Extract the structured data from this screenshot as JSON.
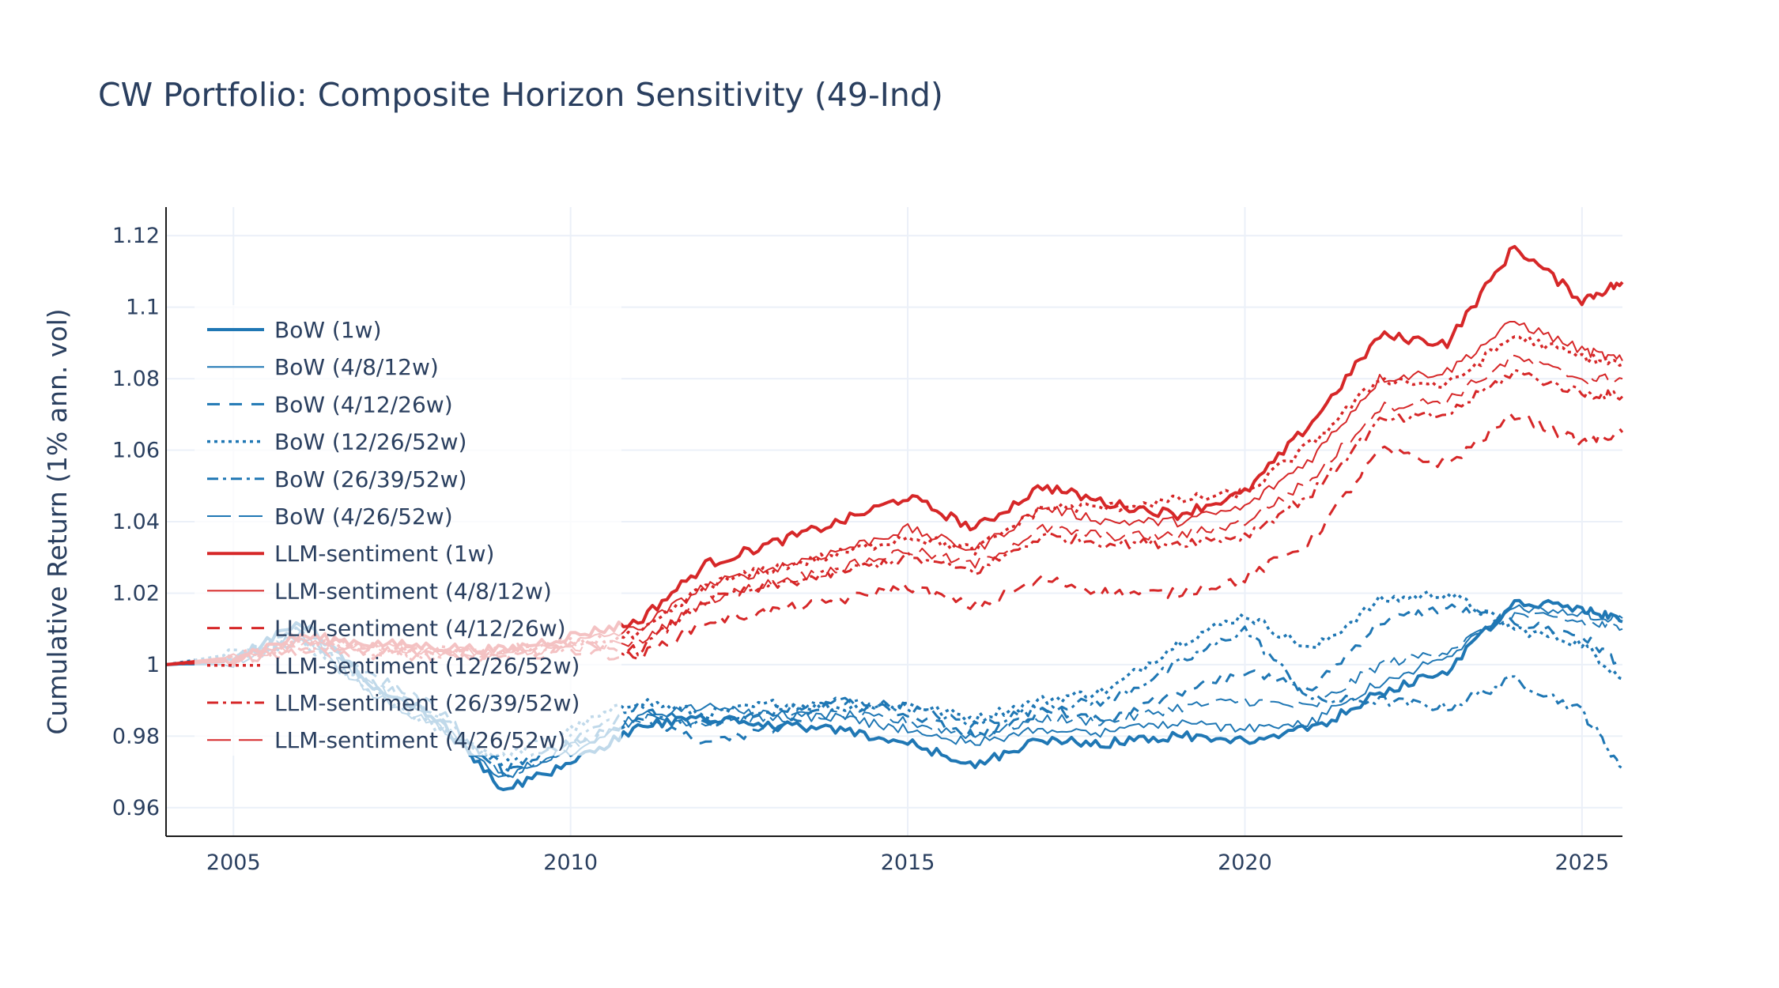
{
  "chart_data": {
    "type": "line",
    "title": "CW Portfolio: Composite Horizon Sensitivity (49-Ind)",
    "xlabel": "",
    "ylabel": "Cumulative Return (1% ann. vol)",
    "xlim": [
      2004,
      2025.6
    ],
    "ylim": [
      0.952,
      1.128
    ],
    "x_ticks": [
      {
        "value": 2005,
        "label": "2005"
      },
      {
        "value": 2010,
        "label": "2010"
      },
      {
        "value": 2015,
        "label": "2015"
      },
      {
        "value": 2020,
        "label": "2020"
      },
      {
        "value": 2025,
        "label": "2025"
      }
    ],
    "y_ticks": [
      {
        "value": 0.96,
        "label": "0.96"
      },
      {
        "value": 0.98,
        "label": "0.98"
      },
      {
        "value": 1.0,
        "label": "1"
      },
      {
        "value": 1.02,
        "label": "1.02"
      },
      {
        "value": 1.04,
        "label": "1.04"
      },
      {
        "value": 1.06,
        "label": "1.06"
      },
      {
        "value": 1.08,
        "label": "1.08"
      },
      {
        "value": 1.1,
        "label": "1.1"
      },
      {
        "value": 1.12,
        "label": "1.12"
      }
    ],
    "grid": true,
    "legend_position": "top-left",
    "colors": {
      "bow": "#1f77b4",
      "llm": "#d62728",
      "grid": "#ebf0f8",
      "axis": "#2a3f5f"
    },
    "x": [
      2004,
      2005,
      2006,
      2007,
      2008,
      2009,
      2010,
      2011,
      2012,
      2013,
      2014,
      2015,
      2016,
      2017,
      2018,
      2019,
      2020,
      2021,
      2022,
      2023,
      2024,
      2025,
      2025.6
    ],
    "series": [
      {
        "name": "BoW (1w)",
        "group": "bow",
        "dash": "solid",
        "width": 4,
        "values": [
          1.0,
          1.001,
          1.012,
          0.995,
          0.985,
          0.965,
          0.972,
          0.983,
          0.985,
          0.983,
          0.982,
          0.978,
          0.972,
          0.979,
          0.978,
          0.98,
          0.979,
          0.982,
          0.992,
          0.998,
          1.018,
          1.016,
          1.012
        ]
      },
      {
        "name": "BoW (4/8/12w)",
        "group": "bow",
        "dash": "solid",
        "width": 2,
        "values": [
          1.0,
          1.0,
          1.008,
          0.992,
          0.983,
          0.968,
          0.975,
          0.986,
          0.988,
          0.986,
          0.985,
          0.982,
          0.978,
          0.982,
          0.981,
          0.984,
          0.982,
          0.984,
          0.995,
          1.002,
          1.016,
          1.014,
          1.013
        ]
      },
      {
        "name": "BoW (4/12/26w)",
        "group": "bow",
        "dash": "16,12",
        "width": 3,
        "values": [
          1.0,
          1.002,
          1.01,
          0.998,
          0.988,
          0.97,
          0.978,
          0.985,
          0.978,
          0.982,
          0.99,
          0.986,
          0.98,
          0.987,
          0.985,
          0.992,
          0.998,
          0.993,
          1.012,
          1.016,
          1.012,
          1.008,
          1.0
        ]
      },
      {
        "name": "BoW (12/26/52w)",
        "group": "bow",
        "dash": "4,5",
        "width": 3.5,
        "values": [
          1.0,
          1.003,
          1.006,
          0.993,
          0.982,
          0.974,
          0.982,
          0.99,
          0.986,
          0.989,
          0.988,
          0.989,
          0.985,
          0.99,
          0.993,
          1.006,
          1.014,
          1.004,
          1.018,
          1.02,
          1.01,
          1.006,
          0.996
        ]
      },
      {
        "name": "BoW (26/39/52w)",
        "group": "bow",
        "dash": "14,6,4,6",
        "width": 3,
        "values": [
          1.0,
          1.002,
          1.007,
          0.996,
          0.986,
          0.971,
          0.979,
          0.988,
          0.983,
          0.987,
          0.99,
          0.988,
          0.983,
          0.988,
          0.99,
          1.0,
          1.01,
          0.99,
          0.99,
          0.988,
          0.996,
          0.987,
          0.971
        ]
      },
      {
        "name": "BoW (4/26/52w)",
        "group": "bow",
        "dash": "30,10",
        "width": 2,
        "values": [
          1.0,
          1.001,
          1.009,
          0.995,
          0.984,
          0.969,
          0.977,
          0.985,
          0.984,
          0.985,
          0.986,
          0.984,
          0.98,
          0.985,
          0.984,
          0.988,
          0.99,
          0.988,
          1.0,
          1.004,
          1.014,
          1.012,
          1.01
        ]
      },
      {
        "name": "LLM-sentiment (1w)",
        "group": "llm",
        "dash": "solid",
        "width": 4,
        "values": [
          1.0,
          1.002,
          1.008,
          1.006,
          1.005,
          1.004,
          1.008,
          1.012,
          1.028,
          1.034,
          1.04,
          1.047,
          1.038,
          1.05,
          1.045,
          1.042,
          1.048,
          1.068,
          1.092,
          1.09,
          1.117,
          1.102,
          1.107
        ]
      },
      {
        "name": "LLM-sentiment (4/8/12w)",
        "group": "llm",
        "dash": "solid",
        "width": 2,
        "values": [
          1.0,
          1.002,
          1.007,
          1.005,
          1.004,
          1.003,
          1.006,
          1.01,
          1.022,
          1.027,
          1.032,
          1.038,
          1.032,
          1.044,
          1.04,
          1.04,
          1.044,
          1.058,
          1.08,
          1.082,
          1.096,
          1.088,
          1.085
        ]
      },
      {
        "name": "LLM-sentiment (4/12/26w)",
        "group": "llm",
        "dash": "16,12",
        "width": 3,
        "values": [
          1.0,
          1.001,
          1.004,
          1.003,
          1.002,
          1.002,
          1.004,
          1.002,
          1.012,
          1.015,
          1.018,
          1.022,
          1.016,
          1.024,
          1.02,
          1.02,
          1.024,
          1.035,
          1.06,
          1.056,
          1.07,
          1.062,
          1.065
        ]
      },
      {
        "name": "LLM-sentiment (12/26/52w)",
        "group": "llm",
        "dash": "4,5",
        "width": 3.5,
        "values": [
          1.0,
          1.002,
          1.006,
          1.005,
          1.004,
          1.004,
          1.006,
          1.008,
          1.022,
          1.027,
          1.031,
          1.036,
          1.032,
          1.044,
          1.044,
          1.046,
          1.048,
          1.062,
          1.08,
          1.078,
          1.092,
          1.086,
          1.084
        ]
      },
      {
        "name": "LLM-sentiment (26/39/52w)",
        "group": "llm",
        "dash": "14,6,4,6",
        "width": 3,
        "values": [
          1.0,
          1.001,
          1.005,
          1.004,
          1.003,
          1.003,
          1.005,
          1.004,
          1.018,
          1.022,
          1.026,
          1.03,
          1.026,
          1.036,
          1.034,
          1.034,
          1.036,
          1.048,
          1.068,
          1.07,
          1.082,
          1.076,
          1.075
        ]
      },
      {
        "name": "LLM-sentiment (4/26/52w)",
        "group": "llm",
        "dash": "30,10",
        "width": 2,
        "values": [
          1.0,
          1.001,
          1.006,
          1.004,
          1.003,
          1.003,
          1.005,
          1.006,
          1.018,
          1.023,
          1.027,
          1.032,
          1.028,
          1.038,
          1.036,
          1.036,
          1.04,
          1.052,
          1.072,
          1.074,
          1.086,
          1.08,
          1.08
        ]
      }
    ]
  }
}
